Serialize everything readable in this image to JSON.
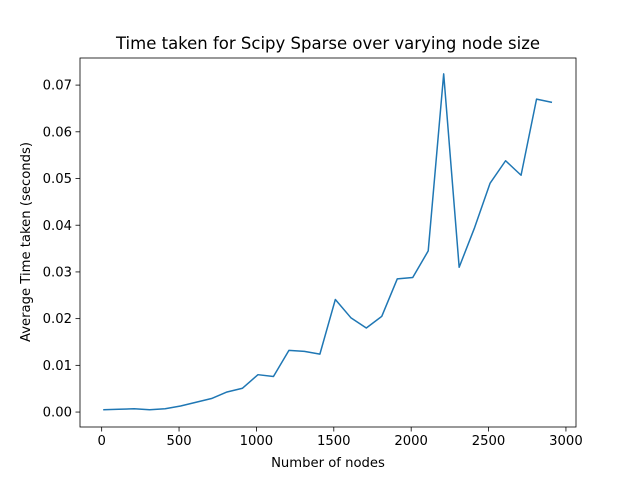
{
  "chart_data": {
    "type": "line",
    "title": "Time taken for Scipy Sparse over varying node size",
    "xlabel": "Number of nodes",
    "ylabel": "Average Time taken (seconds)",
    "xlim": [
      -140,
      3065
    ],
    "ylim": [
      -0.0032,
      0.0758
    ],
    "grid": false,
    "legend": null,
    "xticks": [
      0,
      500,
      1000,
      1500,
      2000,
      2500,
      3000
    ],
    "xtick_labels": [
      "0",
      "500",
      "1000",
      "1500",
      "2000",
      "2500",
      "3000"
    ],
    "yticks": [
      0.0,
      0.01,
      0.02,
      0.03,
      0.04,
      0.05,
      0.06,
      0.07
    ],
    "ytick_labels": [
      "0.00",
      "0.01",
      "0.02",
      "0.03",
      "0.04",
      "0.05",
      "0.06",
      "0.07"
    ],
    "series": [
      {
        "name": "Scipy Sparse",
        "color": "#1f77b4",
        "x": [
          10,
          110,
          210,
          310,
          410,
          510,
          610,
          710,
          810,
          910,
          1010,
          1110,
          1210,
          1310,
          1410,
          1510,
          1610,
          1710,
          1810,
          1910,
          2010,
          2110,
          2210,
          2310,
          2410,
          2510,
          2610,
          2710,
          2810,
          2910
        ],
        "values": [
          0.0005,
          0.0006,
          0.0007,
          0.0005,
          0.0007,
          0.0013,
          0.0021,
          0.0029,
          0.0043,
          0.0051,
          0.008,
          0.0076,
          0.0132,
          0.013,
          0.0124,
          0.0241,
          0.0202,
          0.018,
          0.0205,
          0.0285,
          0.0288,
          0.0345,
          0.0724,
          0.031,
          0.0395,
          0.049,
          0.0538,
          0.0507,
          0.067,
          0.0663
        ]
      }
    ]
  }
}
